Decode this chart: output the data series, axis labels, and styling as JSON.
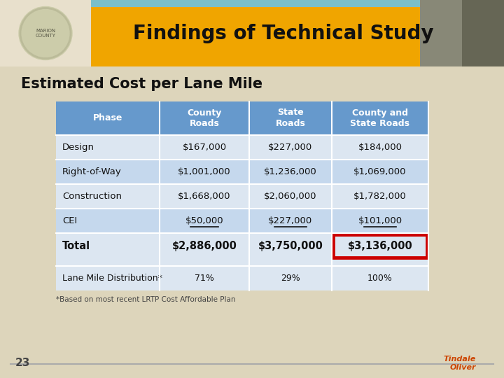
{
  "title": "Findings of Technical Study",
  "subtitle": "Estimated Cost per Lane Mile",
  "bg_color": "#ddd5bb",
  "header_bg": "#f0a500",
  "teal_color": "#7bbfca",
  "header_text_color": "#1a1a1a",
  "table_header_bg": "#6699cc",
  "table_header_text": "#ffffff",
  "table_row_bg1": "#dce6f1",
  "table_row_bg2": "#c5d8ed",
  "table_dist_bg": "#dce6f1",
  "col_headers": [
    "Phase",
    "County\nRoads",
    "State\nRoads",
    "County and\nState Roads"
  ],
  "rows": [
    [
      "Design",
      "$167,000",
      "$227,000",
      "$184,000"
    ],
    [
      "Right-of-Way",
      "$1,001,000",
      "$1,236,000",
      "$1,069,000"
    ],
    [
      "Construction",
      "$1,668,000",
      "$2,060,000",
      "$1,782,000"
    ],
    [
      "CEI",
      "$50,000",
      "$227,000",
      "$101,000"
    ],
    [
      "Total",
      "$2,886,000",
      "$3,750,000",
      "$3,136,000"
    ]
  ],
  "dist_row": [
    "Lane Mile Distribution*",
    "71%",
    "29%",
    "100%"
  ],
  "footnote": "*Based on most recent LRTP Cost Affordable Plan",
  "highlight_color": "#cc0000",
  "page_number": "23",
  "logo_bg": "#e8e0cc",
  "white_col_bg": "#f5f0e8"
}
